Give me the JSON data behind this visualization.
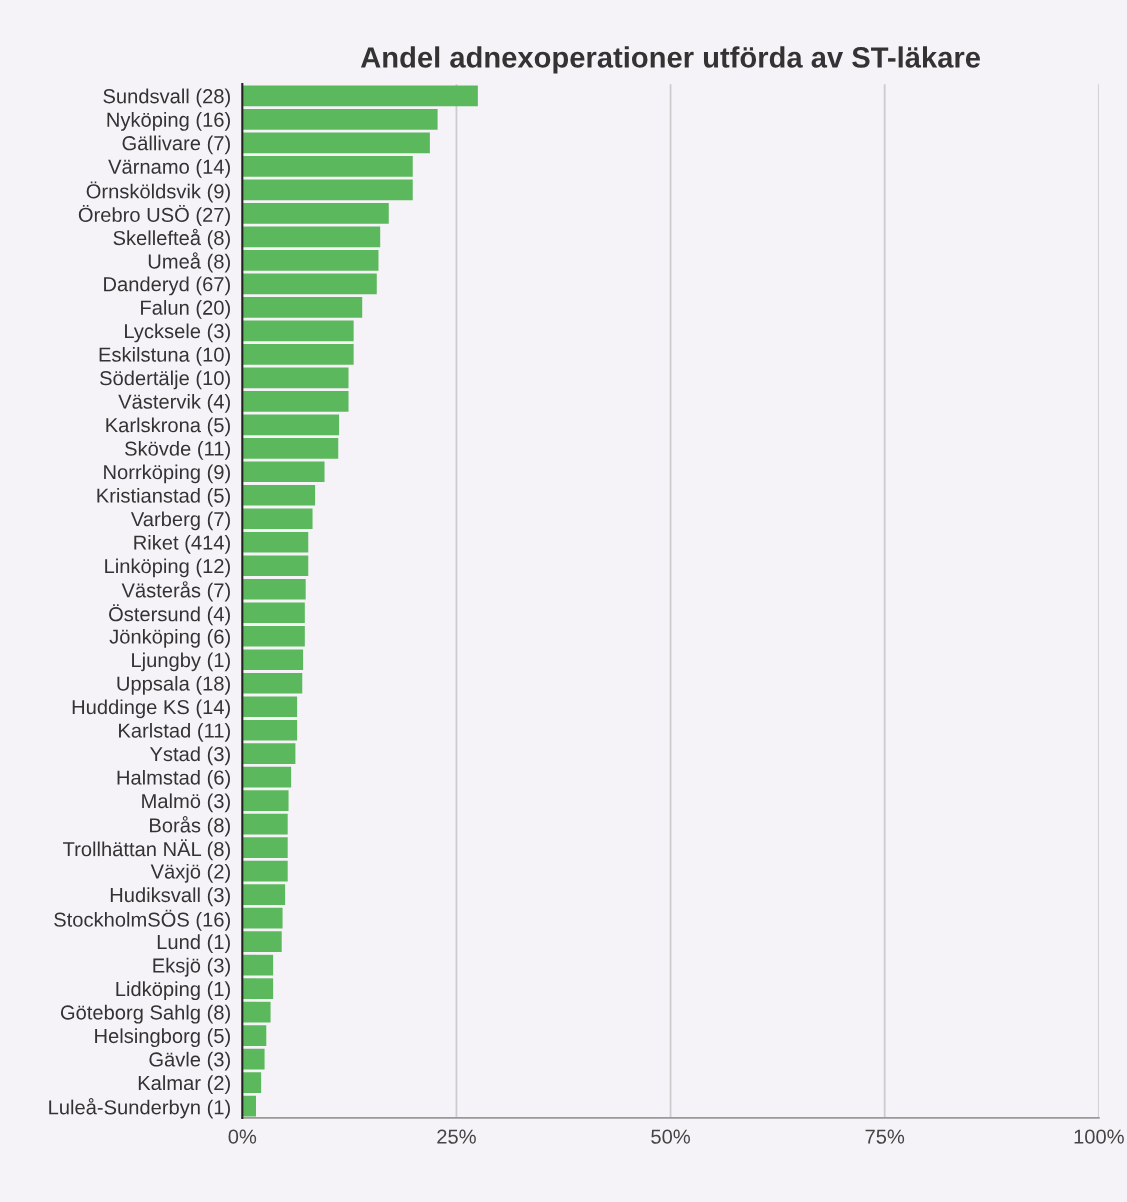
{
  "chart_data": {
    "type": "bar",
    "orientation": "horizontal",
    "title": "Andel adnexoperationer utförda av ST-läkare",
    "categories": [
      "Sundsvall (28)",
      "Nyköping (16)",
      "Gällivare (7)",
      "Värnamo (14)",
      "Örnsköldsvik (9)",
      "Örebro USÖ (27)",
      "Skellefteå (8)",
      "Umeå (8)",
      "Danderyd (67)",
      "Falun (20)",
      "Lycksele (3)",
      "Eskilstuna (10)",
      "Södertälje (10)",
      "Västervik (4)",
      "Karlskrona (5)",
      "Skövde (11)",
      "Norrköping (9)",
      "Kristianstad (5)",
      "Varberg (7)",
      "Riket (414)",
      "Linköping (12)",
      "Västerås (7)",
      "Östersund (4)",
      "Jönköping (6)",
      "Ljungby (1)",
      "Uppsala (18)",
      "Huddinge KS (14)",
      "Karlstad (11)",
      "Ystad (3)",
      "Halmstad (6)",
      "Malmö (3)",
      "Borås (8)",
      "Trollhättan NÄL (8)",
      "Växjö (2)",
      "Hudiksvall (3)",
      "StockholmSÖS (16)",
      "Lund (1)",
      "Eksjö (3)",
      "Lidköping (1)",
      "Göteborg Sahlg (8)",
      "Helsingborg (5)",
      "Gävle (3)",
      "Kalmar (2)",
      "Luleå-Sunderbyn (1)"
    ],
    "values": [
      27.5,
      22.8,
      21.9,
      19.9,
      19.9,
      17.1,
      16.1,
      15.9,
      15.7,
      14.0,
      13.0,
      13.0,
      12.4,
      12.4,
      11.3,
      11.2,
      9.6,
      8.5,
      8.2,
      7.7,
      7.7,
      7.4,
      7.3,
      7.3,
      7.1,
      7.0,
      6.4,
      6.4,
      6.2,
      5.7,
      5.4,
      5.3,
      5.3,
      5.3,
      5.0,
      4.7,
      4.6,
      3.6,
      3.6,
      3.3,
      2.8,
      2.6,
      2.2,
      1.6
    ],
    "color": "#5cb85c",
    "xlim": [
      0,
      100
    ],
    "xticks": [
      {
        "value": 0,
        "label": "0%"
      },
      {
        "value": 25,
        "label": "25%"
      },
      {
        "value": 50,
        "label": "50%"
      },
      {
        "value": 75,
        "label": "75%"
      },
      {
        "value": 100,
        "label": "100%"
      }
    ],
    "grid": "x"
  }
}
